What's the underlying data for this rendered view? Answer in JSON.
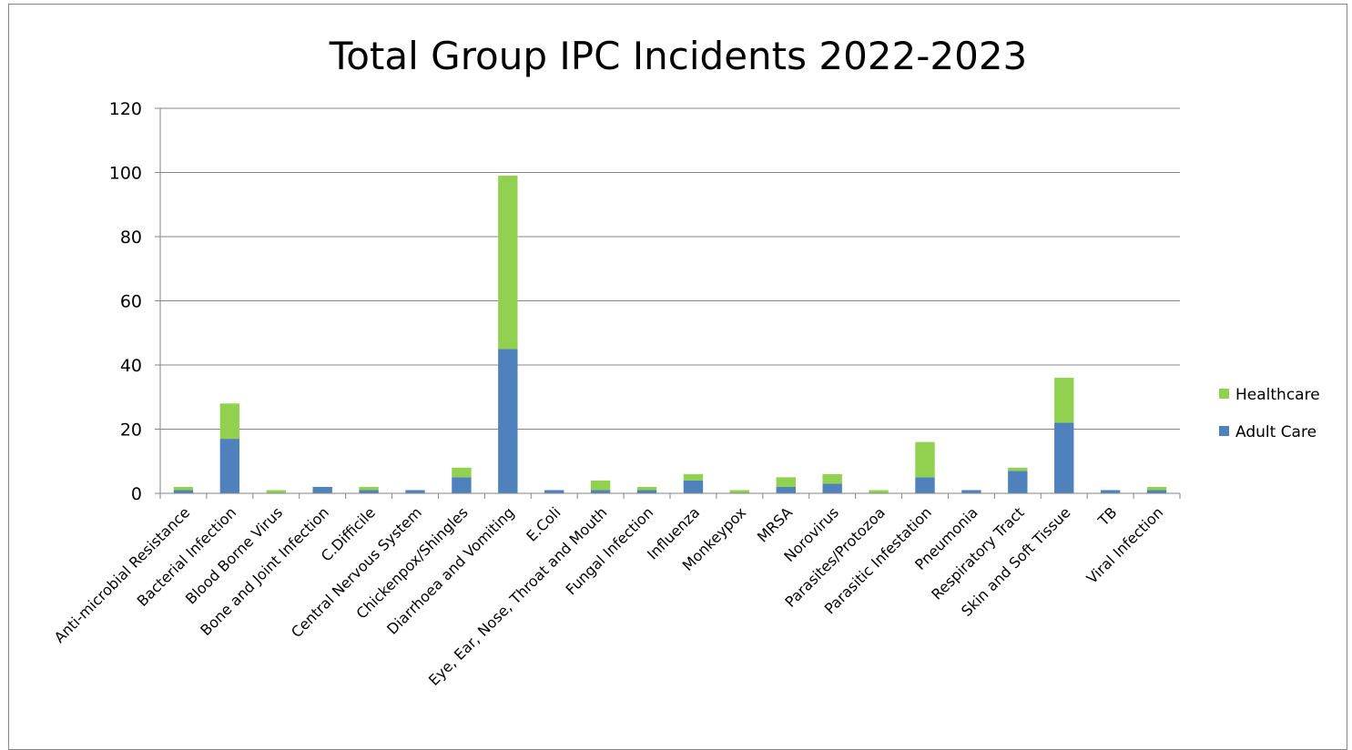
{
  "chart_data": {
    "type": "bar",
    "stacked": true,
    "title": "Total Group IPC Incidents 2022-2023",
    "xlabel": "",
    "ylabel": "",
    "ylim": [
      0,
      120
    ],
    "yticks": [
      0,
      20,
      40,
      60,
      80,
      100,
      120
    ],
    "grid": true,
    "legend": "right",
    "categories": [
      "Anti-microbial Resistance",
      "Bacterial Infection",
      "Blood Borne Virus",
      "Bone and Joint Infection",
      "C.Difficile",
      "Central Nervous System",
      "Chickenpox/Shingles",
      "Diarrhoea and Vomiting",
      "E.Coli",
      "Eye, Ear, Nose, Throat and Mouth",
      "Fungal Infection",
      "Influenza",
      "Monkeypox",
      "MRSA",
      "Norovirus",
      "Parasites/Protozoa",
      "Parasitic Infestation",
      "Pneumonia",
      "Respiratory Tract",
      "Skin and Soft Tissue",
      "TB",
      "Viral Infection"
    ],
    "series": [
      {
        "name": "Adult Care",
        "color": "#4f81bd",
        "values": [
          1,
          17,
          0,
          2,
          1,
          1,
          5,
          45,
          1,
          1,
          1,
          4,
          0,
          2,
          3,
          0,
          5,
          1,
          7,
          22,
          1,
          1
        ]
      },
      {
        "name": "Healthcare",
        "color": "#92d050",
        "values": [
          1,
          11,
          1,
          0,
          1,
          0,
          3,
          54,
          0,
          3,
          1,
          2,
          1,
          3,
          3,
          1,
          11,
          0,
          1,
          14,
          0,
          1
        ]
      }
    ]
  }
}
